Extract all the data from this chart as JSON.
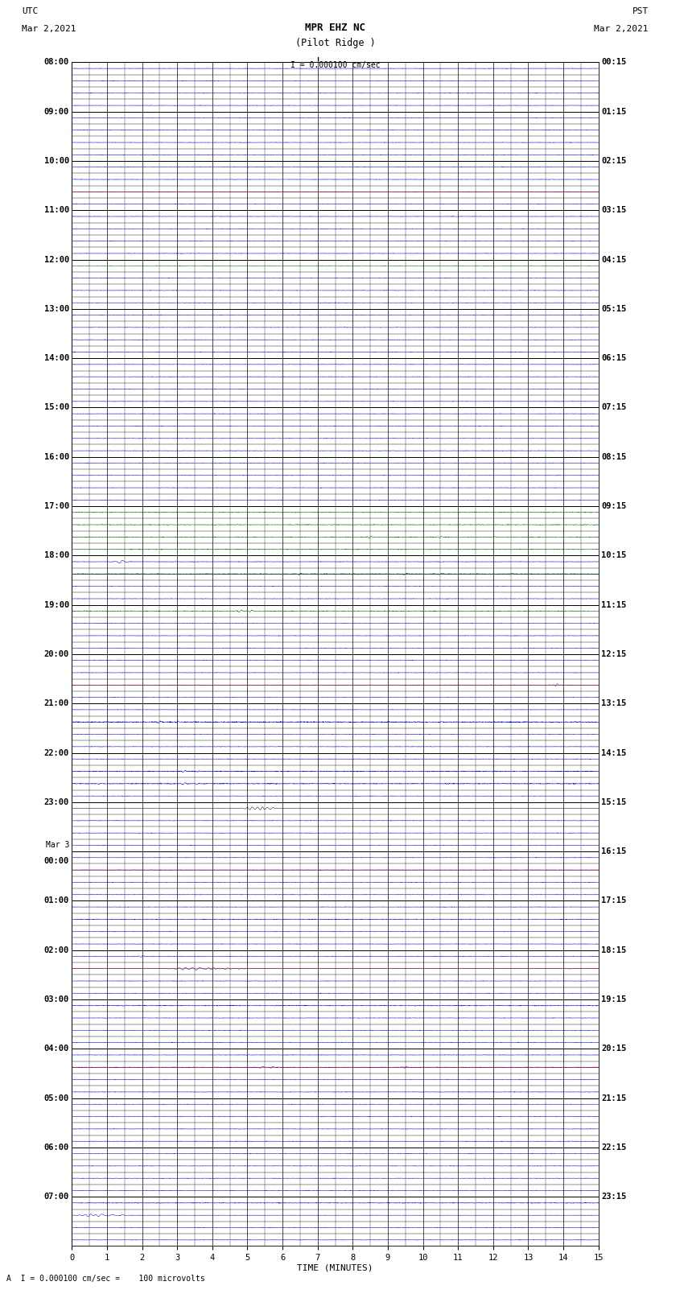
{
  "title_line1": "MPR EHZ NC",
  "title_line2": "(Pilot Ridge )",
  "scale_label": "I = 0.000100 cm/sec",
  "left_header": "UTC",
  "left_date": "Mar 2,2021",
  "right_header": "PST",
  "right_date": "Mar 2,2021",
  "bottom_note": "A  I = 0.000100 cm/sec =    100 microvolts",
  "xlabel": "TIME (MINUTES)",
  "xmin": 0,
  "xmax": 15,
  "xticks": [
    0,
    1,
    2,
    3,
    4,
    5,
    6,
    7,
    8,
    9,
    10,
    11,
    12,
    13,
    14,
    15
  ],
  "num_hours": 24,
  "traces_per_hour": 4,
  "background_color": "#ffffff",
  "utc_labels": [
    "08:00",
    "09:00",
    "10:00",
    "11:00",
    "12:00",
    "13:00",
    "14:00",
    "15:00",
    "16:00",
    "17:00",
    "18:00",
    "19:00",
    "20:00",
    "21:00",
    "22:00",
    "23:00",
    "Mar 3\n00:00",
    "01:00",
    "02:00",
    "03:00",
    "04:00",
    "05:00",
    "06:00",
    "07:00"
  ],
  "pst_labels": [
    "00:15",
    "01:15",
    "02:15",
    "03:15",
    "04:15",
    "05:15",
    "06:15",
    "07:15",
    "08:15",
    "09:15",
    "10:15",
    "11:15",
    "12:15",
    "13:15",
    "14:15",
    "15:15",
    "16:15",
    "17:15",
    "18:15",
    "19:15",
    "20:15",
    "21:15",
    "22:15",
    "23:15"
  ],
  "fig_width": 8.5,
  "fig_height": 16.13,
  "dpi": 100,
  "title_fontsize": 9,
  "label_fontsize": 8,
  "tick_fontsize": 7.5,
  "note_fontsize": 7
}
